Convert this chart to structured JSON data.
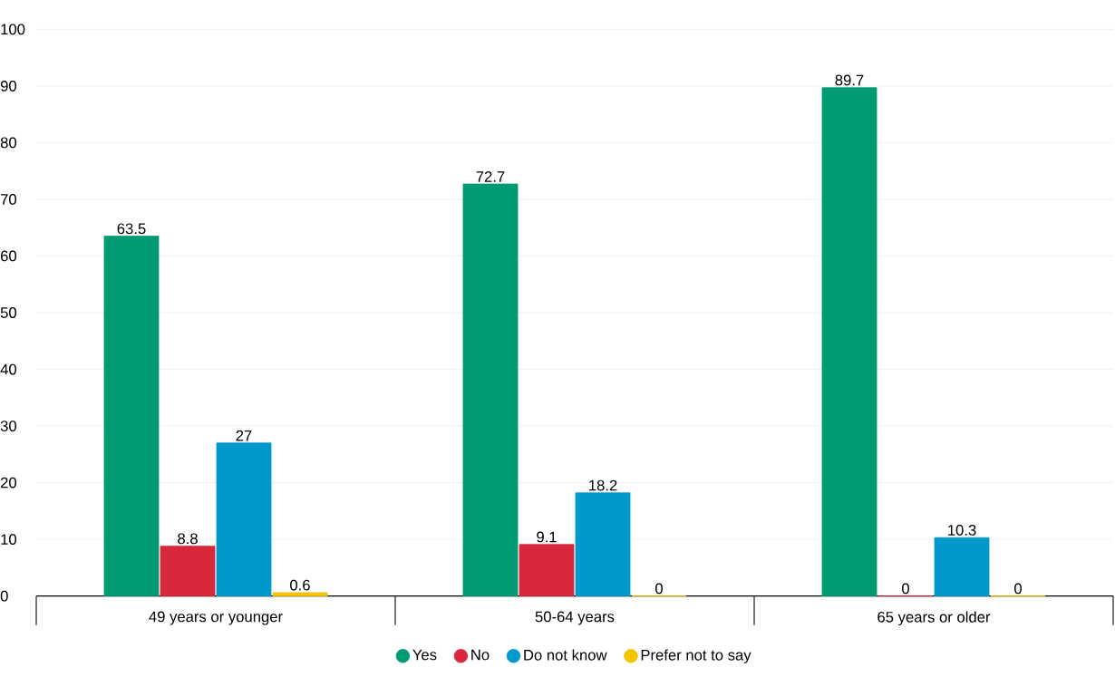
{
  "chart_data": {
    "type": "bar",
    "categories": [
      "49 years or younger",
      "50-64 years",
      "65 years or older"
    ],
    "series": [
      {
        "name": "Yes",
        "color": "#009b72",
        "values": [
          63.5,
          72.7,
          89.7
        ]
      },
      {
        "name": "No",
        "color": "#d9283c",
        "values": [
          8.8,
          9.1,
          0
        ]
      },
      {
        "name": "Do not know",
        "color": "#0099cc",
        "values": [
          27,
          18.2,
          10.3
        ]
      },
      {
        "name": "Prefer not to say",
        "color": "#f5c400",
        "values": [
          0.6,
          0,
          0
        ]
      }
    ],
    "ylim": [
      0,
      100
    ],
    "yticks": [
      0,
      10,
      20,
      30,
      40,
      50,
      60,
      70,
      80,
      90,
      100
    ],
    "grid": "y",
    "legend": "bottom",
    "data_labels": true
  }
}
